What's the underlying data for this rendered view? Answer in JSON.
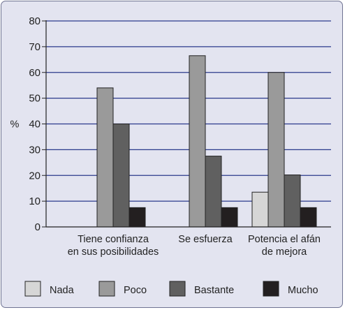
{
  "chart_data": {
    "type": "bar",
    "ylabel": "%",
    "ylim": [
      0,
      80
    ],
    "yticks": [
      0,
      10,
      20,
      30,
      40,
      50,
      60,
      70,
      80
    ],
    "grid": true,
    "legend_position": "bottom",
    "categories": [
      [
        "Tiene confianza",
        "en sus posibilidades"
      ],
      [
        "Se esfuerza"
      ],
      [
        "Potencia el afán",
        "de mejora"
      ]
    ],
    "series": [
      {
        "name": "Nada",
        "color": "#d6d6d6",
        "values": [
          0,
          0,
          13.5
        ]
      },
      {
        "name": "Poco",
        "color": "#9a9a9a",
        "values": [
          54,
          66.5,
          60
        ]
      },
      {
        "name": "Bastante",
        "color": "#606060",
        "values": [
          40,
          27.5,
          20.2
        ]
      },
      {
        "name": "Mucho",
        "color": "#231f20",
        "values": [
          7.5,
          7.5,
          7.5
        ]
      }
    ]
  }
}
